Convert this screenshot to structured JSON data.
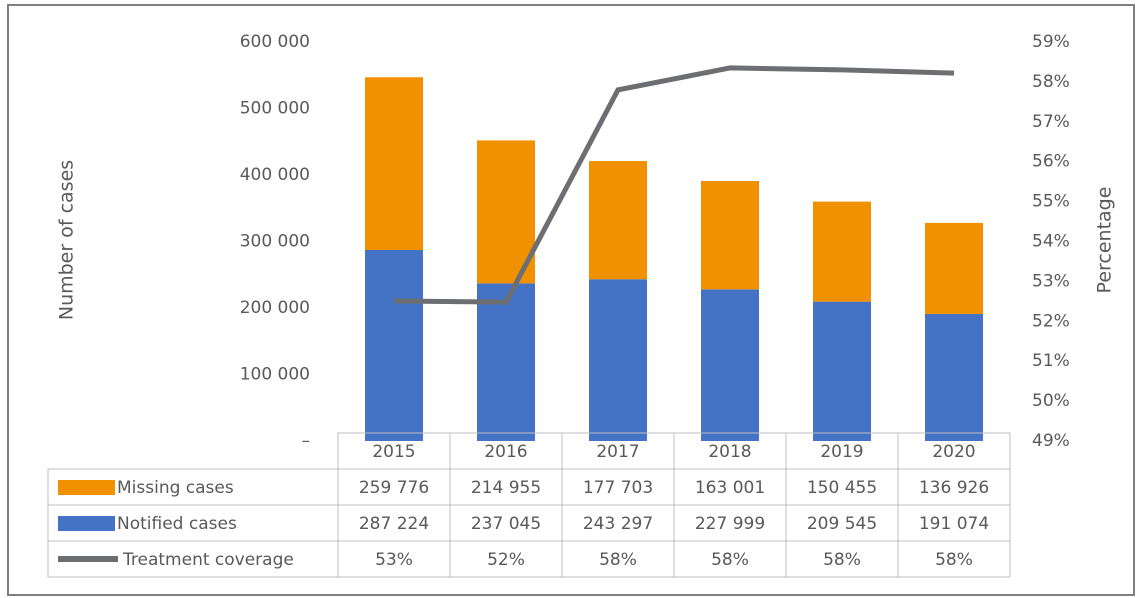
{
  "chart_data": {
    "type": "bar-line",
    "ylabel": "Number of cases",
    "y2label": "Percentage",
    "categories": [
      "2015",
      "2016",
      "2017",
      "2018",
      "2019",
      "2020"
    ],
    "series": [
      {
        "name": "Missing cases",
        "type": "bar",
        "color": "#f29100",
        "values": [
          259776,
          214955,
          177703,
          163001,
          150455,
          136926
        ],
        "value_labels": [
          "259 776",
          "214 955",
          "177 703",
          "163 001",
          "150 455",
          "136 926"
        ]
      },
      {
        "name": "Notified cases",
        "type": "bar",
        "color": "#4472c4",
        "values": [
          287224,
          237045,
          243297,
          227999,
          209545,
          191074
        ],
        "value_labels": [
          "287 224",
          "237 045",
          "243 297",
          "227 999",
          "209 545",
          "191 074"
        ]
      },
      {
        "name": "Treatment coverage",
        "type": "line",
        "axis": "y2",
        "color": "#6d6e71",
        "values": [
          52.51,
          52.48,
          57.8,
          58.35,
          58.3,
          58.22
        ],
        "value_labels": [
          "53%",
          "52%",
          "58%",
          "58%",
          "58%",
          "58%"
        ]
      }
    ],
    "ylim": [
      0,
      600000
    ],
    "yticks": [
      {
        "value": 0,
        "label": "–"
      },
      {
        "value": 100000,
        "label": "100 000"
      },
      {
        "value": 200000,
        "label": "200 000"
      },
      {
        "value": 300000,
        "label": "300 000"
      },
      {
        "value": 400000,
        "label": "400 000"
      },
      {
        "value": 500000,
        "label": "500 000"
      },
      {
        "value": 600000,
        "label": "600 000"
      }
    ],
    "y2lim": [
      49,
      59
    ],
    "y2ticks": [
      {
        "value": 49,
        "label": "49%"
      },
      {
        "value": 50,
        "label": "50%"
      },
      {
        "value": 51,
        "label": "51%"
      },
      {
        "value": 52,
        "label": "52%"
      },
      {
        "value": 53,
        "label": "53%"
      },
      {
        "value": 54,
        "label": "54%"
      },
      {
        "value": 55,
        "label": "55%"
      },
      {
        "value": 56,
        "label": "56%"
      },
      {
        "value": 57,
        "label": "57%"
      },
      {
        "value": 58,
        "label": "58%"
      },
      {
        "value": 59,
        "label": "59%"
      }
    ]
  }
}
